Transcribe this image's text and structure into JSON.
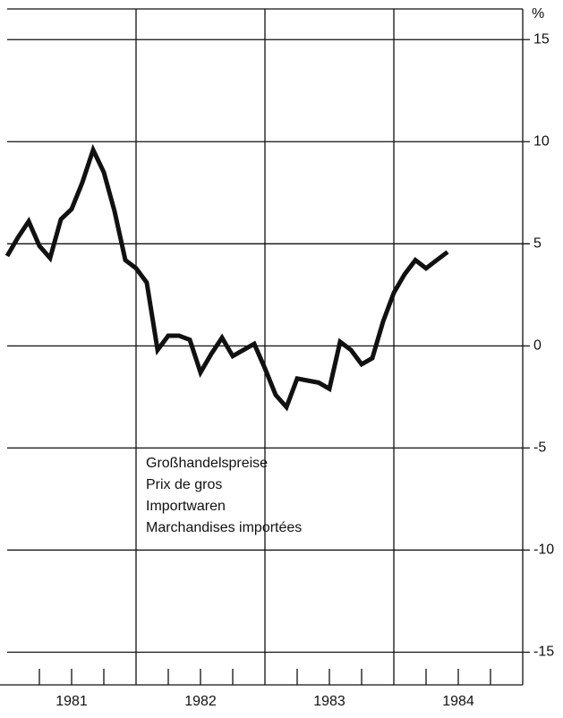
{
  "chart_data": {
    "type": "line",
    "unit_label": "%",
    "annotations": [
      "Großhandelspreise",
      "Prix de gros",
      "Importwaren",
      "Marchandises importées"
    ],
    "x": [
      1981,
      1981.083,
      1981.167,
      1981.25,
      1981.333,
      1981.417,
      1981.5,
      1981.583,
      1981.667,
      1981.75,
      1981.833,
      1981.917,
      1982,
      1982.083,
      1982.167,
      1982.25,
      1982.333,
      1982.417,
      1982.5,
      1982.583,
      1982.667,
      1982.75,
      1982.833,
      1982.917,
      1983,
      1983.083,
      1983.167,
      1983.25,
      1983.333,
      1983.417,
      1983.5,
      1983.583,
      1983.667,
      1983.75,
      1983.833,
      1983.917,
      1984,
      1984.083,
      1984.167,
      1984.25,
      1984.333,
      1984.417
    ],
    "series": [
      {
        "color": "#111111",
        "values": [
          4.4,
          5.3,
          6.1,
          4.9,
          4.3,
          6.2,
          6.7,
          8.0,
          9.6,
          8.5,
          6.6,
          4.2,
          3.8,
          3.1,
          -0.2,
          0.5,
          0.5,
          0.3,
          -1.3,
          -0.4,
          0.4,
          -0.5,
          -0.2,
          0.1,
          -1.1,
          -2.4,
          -3.0,
          -1.6,
          -1.7,
          -1.8,
          -2.1,
          0.2,
          -0.2,
          -0.9,
          -0.6,
          1.2,
          2.6,
          3.5,
          4.2,
          3.8,
          4.2,
          4.6
        ]
      }
    ],
    "xlim": [
      1981,
      1985
    ],
    "xticks": [
      {
        "value": 1981.5,
        "label": "1981"
      },
      {
        "value": 1982.5,
        "label": "1982"
      },
      {
        "value": 1983.5,
        "label": "1983"
      },
      {
        "value": 1984.5,
        "label": "1984"
      }
    ],
    "xgrid": [
      1982,
      1983,
      1984
    ],
    "minor_xticks": [
      1981.25,
      1981.5,
      1981.75,
      1982.25,
      1982.5,
      1982.75,
      1983.25,
      1983.5,
      1983.75,
      1984.25,
      1984.5,
      1984.75
    ],
    "ylim": [
      -16.6,
      16.5
    ],
    "yticks": [
      15,
      10,
      5,
      0,
      -5,
      -10,
      -15
    ],
    "grid": true
  }
}
